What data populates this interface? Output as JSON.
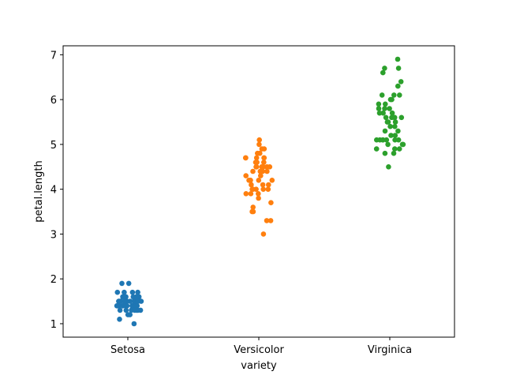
{
  "chart_data": {
    "type": "scatter",
    "xlabel": "variety",
    "ylabel": "petal.length",
    "categories": [
      "Setosa",
      "Versicolor",
      "Virginica"
    ],
    "ylim": [
      0.7,
      7.2
    ],
    "yticks": [
      1,
      2,
      3,
      4,
      5,
      6,
      7
    ],
    "grid": false,
    "legend": "none",
    "series": [
      {
        "category": "Setosa",
        "color": "#1f77b4",
        "values": [
          1.4,
          1.4,
          1.3,
          1.5,
          1.4,
          1.7,
          1.4,
          1.5,
          1.4,
          1.5,
          1.5,
          1.6,
          1.4,
          1.1,
          1.2,
          1.5,
          1.3,
          1.4,
          1.7,
          1.5,
          1.7,
          1.5,
          1.0,
          1.7,
          1.9,
          1.6,
          1.6,
          1.5,
          1.4,
          1.6,
          1.6,
          1.5,
          1.5,
          1.4,
          1.5,
          1.2,
          1.3,
          1.4,
          1.3,
          1.5,
          1.3,
          1.3,
          1.3,
          1.6,
          1.9,
          1.4,
          1.6,
          1.4,
          1.5,
          1.4
        ]
      },
      {
        "category": "Versicolor",
        "color": "#ff7f0e",
        "values": [
          4.7,
          4.5,
          4.9,
          4.0,
          4.6,
          4.5,
          4.7,
          3.3,
          4.6,
          3.9,
          3.5,
          4.2,
          4.0,
          4.7,
          3.6,
          4.4,
          4.5,
          4.1,
          4.5,
          3.9,
          4.8,
          4.0,
          4.9,
          4.7,
          4.3,
          4.4,
          4.8,
          5.0,
          4.5,
          3.5,
          3.8,
          3.7,
          3.9,
          5.1,
          4.5,
          4.5,
          4.7,
          4.4,
          4.1,
          4.0,
          4.4,
          4.6,
          4.0,
          3.3,
          4.2,
          4.2,
          4.2,
          4.3,
          3.0,
          4.1
        ]
      },
      {
        "category": "Virginica",
        "color": "#2ca02c",
        "values": [
          6.0,
          5.1,
          5.9,
          5.6,
          5.8,
          6.6,
          4.5,
          6.3,
          5.8,
          6.1,
          5.1,
          5.3,
          5.5,
          5.0,
          5.1,
          5.3,
          5.5,
          6.7,
          6.9,
          5.0,
          5.7,
          4.9,
          6.7,
          4.9,
          5.7,
          6.0,
          4.8,
          4.9,
          5.6,
          5.8,
          6.1,
          6.4,
          5.6,
          5.1,
          5.6,
          6.1,
          5.6,
          5.5,
          4.8,
          5.4,
          5.6,
          5.1,
          5.1,
          5.9,
          5.7,
          5.2,
          5.0,
          5.2,
          5.4,
          5.1
        ]
      }
    ]
  }
}
